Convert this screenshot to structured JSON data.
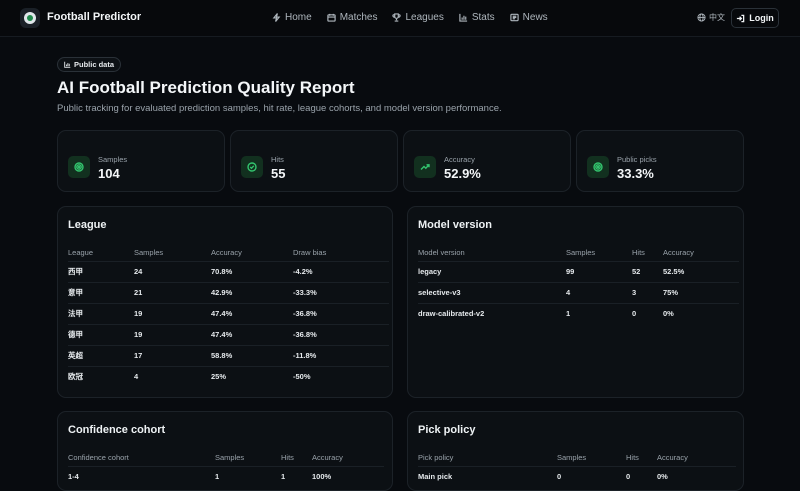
{
  "brand": {
    "name": "Football Predictor",
    "logo": "football-logo-icon"
  },
  "nav": [
    {
      "label": "Home",
      "icon": "lightning-icon"
    },
    {
      "label": "Matches",
      "icon": "calendar-icon"
    },
    {
      "label": "Leagues",
      "icon": "trophy-icon"
    },
    {
      "label": "Stats",
      "icon": "bar-chart-icon"
    },
    {
      "label": "News",
      "icon": "newspaper-icon"
    }
  ],
  "lang": {
    "label": "中文",
    "icon": "globe-icon"
  },
  "login": {
    "label": "Login",
    "icon": "login-icon"
  },
  "badge": {
    "label": "Public data",
    "icon": "bar-chart-icon"
  },
  "title": "AI Football Prediction Quality Report",
  "subtitle": "Public tracking for evaluated prediction samples, hit rate, league cohorts, and model version performance.",
  "accent": "#33c46e",
  "stats": [
    {
      "label": "Samples",
      "value": "104",
      "icon": "target-icon"
    },
    {
      "label": "Hits",
      "value": "55",
      "icon": "check-circle-icon"
    },
    {
      "label": "Accuracy",
      "value": "52.9%",
      "icon": "trend-up-icon"
    },
    {
      "label": "Public picks",
      "value": "33.3%",
      "icon": "target-icon"
    }
  ],
  "league": {
    "title": "League",
    "headers": [
      "League",
      "Samples",
      "Accuracy",
      "Draw bias"
    ],
    "rows": [
      [
        "西甲",
        "24",
        "70.8%",
        "-4.2%"
      ],
      [
        "意甲",
        "21",
        "42.9%",
        "-33.3%"
      ],
      [
        "法甲",
        "19",
        "47.4%",
        "-36.8%"
      ],
      [
        "德甲",
        "19",
        "47.4%",
        "-36.8%"
      ],
      [
        "英超",
        "17",
        "58.8%",
        "-11.8%"
      ],
      [
        "欧冠",
        "4",
        "25%",
        "-50%"
      ]
    ]
  },
  "model": {
    "title": "Model version",
    "headers": [
      "Model version",
      "Samples",
      "Hits",
      "Accuracy"
    ],
    "rows": [
      [
        "legacy",
        "99",
        "52",
        "52.5%"
      ],
      [
        "selective-v3",
        "4",
        "3",
        "75%"
      ],
      [
        "draw-calibrated-v2",
        "1",
        "0",
        "0%"
      ]
    ]
  },
  "confidence": {
    "title": "Confidence cohort",
    "headers": [
      "Confidence cohort",
      "Samples",
      "Hits",
      "Accuracy"
    ],
    "rows": [
      [
        "1-4",
        "1",
        "1",
        "100%"
      ]
    ]
  },
  "pickpolicy": {
    "title": "Pick policy",
    "headers": [
      "Pick policy",
      "Samples",
      "Hits",
      "Accuracy"
    ],
    "rows": [
      [
        "Main pick",
        "0",
        "0",
        "0%"
      ]
    ]
  }
}
